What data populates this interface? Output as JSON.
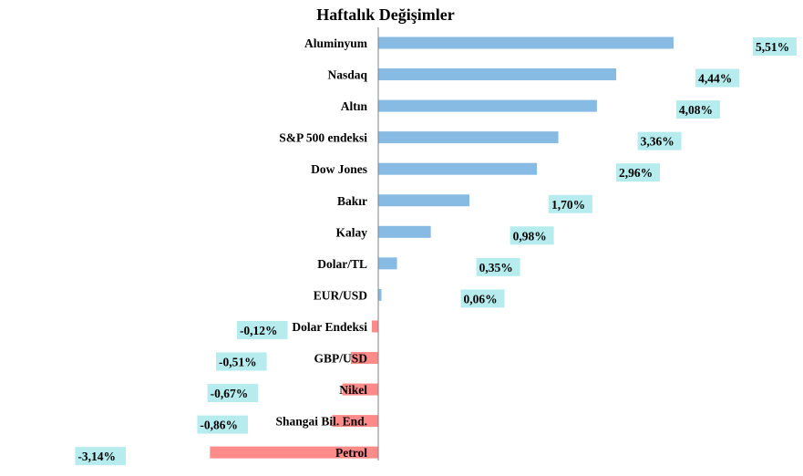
{
  "chart_data": {
    "type": "bar",
    "orientation": "horizontal",
    "title": "Haftalık Değişimler",
    "categories": [
      "Aluminyum",
      "Nasdaq",
      "Altın",
      "S&P 500 endeksi",
      "Dow Jones",
      "Bakır",
      "Kalay",
      "Dolar/TL",
      "EUR/USD",
      "Dolar Endeksi",
      "GBP/USD",
      "Nikel",
      "Shangai Bil. End.",
      "Petrol"
    ],
    "values": [
      5.51,
      4.44,
      4.08,
      3.36,
      2.96,
      1.7,
      0.98,
      0.35,
      0.06,
      -0.12,
      -0.51,
      -0.67,
      -0.86,
      -3.14
    ],
    "value_labels": [
      "5,51%",
      "4,44%",
      "4,08%",
      "3,36%",
      "2,96%",
      "1,70%",
      "0,98%",
      "0,35%",
      "0,06%",
      "-0,12%",
      "-0,51%",
      "-0,67%",
      "-0,86%",
      "-3,14%"
    ],
    "xlim": [
      -3.14,
      5.51
    ],
    "grid": false,
    "colors": {
      "positive": "#88bbe3",
      "negative": "#ff8a8a",
      "label_bg": "#b7ecef",
      "axis": "#808080"
    }
  }
}
